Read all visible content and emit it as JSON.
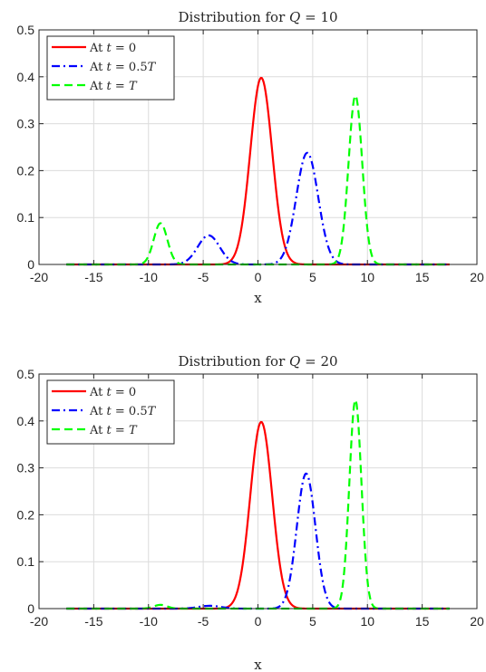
{
  "chart_data": [
    {
      "type": "line",
      "title": "Distribution for Q = 10",
      "title_parts": {
        "prefix": "Distribution for ",
        "var": "Q",
        "rel": " = ",
        "num": "10"
      },
      "xlabel": "x",
      "ylabel": "",
      "xlim": [
        -20,
        20
      ],
      "ylim": [
        0,
        0.5
      ],
      "xticks": [
        -20,
        -15,
        -10,
        -5,
        0,
        5,
        10,
        15,
        20
      ],
      "yticks": [
        0,
        0.1,
        0.2,
        0.3,
        0.4,
        0.5
      ],
      "xtick_labels": [
        "-20",
        "-15",
        "-10",
        "-5",
        "0",
        "5",
        "10",
        "15",
        "20"
      ],
      "ytick_labels": [
        "0",
        "0.1",
        "0.2",
        "0.3",
        "0.4",
        "0.5"
      ],
      "grid": true,
      "legend": "top-left",
      "x_range": [
        -17.5,
        17.5
      ],
      "series": [
        {
          "name": "At t = 0",
          "name_parts": {
            "prefix": "At ",
            "var": "t",
            "rel": " = ",
            "rhs": "0"
          },
          "color": "#ff0000",
          "dash": "solid",
          "components": [
            {
              "amp": 0.398,
              "mu": 0.3,
              "sigma": 1.0
            }
          ]
        },
        {
          "name": "At t = 0.5T",
          "name_parts": {
            "prefix": "At ",
            "var": "t",
            "rel": " = ",
            "rhs": "0.5T"
          },
          "color": "#0000ff",
          "dash": "dashdot",
          "components": [
            {
              "amp": 0.238,
              "mu": 4.5,
              "sigma": 1.0
            },
            {
              "amp": 0.062,
              "mu": -4.5,
              "sigma": 1.0
            }
          ]
        },
        {
          "name": "At t = T",
          "name_parts": {
            "prefix": "At ",
            "var": "t",
            "rel": " = ",
            "rhs": "T"
          },
          "color": "#00ff00",
          "dash": "dashed",
          "components": [
            {
              "amp": 0.36,
              "mu": 8.9,
              "sigma": 0.62
            },
            {
              "amp": 0.088,
              "mu": -8.9,
              "sigma": 0.62
            }
          ]
        }
      ]
    },
    {
      "type": "line",
      "title": "Distribution for Q = 20",
      "title_parts": {
        "prefix": "Distribution for ",
        "var": "Q",
        "rel": " = ",
        "num": "20"
      },
      "xlabel": "x",
      "ylabel": "",
      "xlim": [
        -20,
        20
      ],
      "ylim": [
        0,
        0.5
      ],
      "xticks": [
        -20,
        -15,
        -10,
        -5,
        0,
        5,
        10,
        15,
        20
      ],
      "yticks": [
        0,
        0.1,
        0.2,
        0.3,
        0.4,
        0.5
      ],
      "xtick_labels": [
        "-20",
        "-15",
        "-10",
        "-5",
        "0",
        "5",
        "10",
        "15",
        "20"
      ],
      "ytick_labels": [
        "0",
        "0.1",
        "0.2",
        "0.3",
        "0.4",
        "0.5"
      ],
      "grid": true,
      "legend": "top-left",
      "x_range": [
        -17.5,
        17.5
      ],
      "series": [
        {
          "name": "At t = 0",
          "name_parts": {
            "prefix": "At ",
            "var": "t",
            "rel": " = ",
            "rhs": "0"
          },
          "color": "#ff0000",
          "dash": "solid",
          "components": [
            {
              "amp": 0.398,
              "mu": 0.3,
              "sigma": 1.0
            }
          ]
        },
        {
          "name": "At t = 0.5T",
          "name_parts": {
            "prefix": "At ",
            "var": "t",
            "rel": " = ",
            "rhs": "0.5T"
          },
          "color": "#0000ff",
          "dash": "dashdot",
          "components": [
            {
              "amp": 0.288,
              "mu": 4.4,
              "sigma": 0.85
            },
            {
              "amp": 0.006,
              "mu": -4.4,
              "sigma": 1.0
            }
          ]
        },
        {
          "name": "At t = T",
          "name_parts": {
            "prefix": "At ",
            "var": "t",
            "rel": " = ",
            "rhs": "T"
          },
          "color": "#00ff00",
          "dash": "dashed",
          "components": [
            {
              "amp": 0.445,
              "mu": 8.9,
              "sigma": 0.55
            },
            {
              "amp": 0.008,
              "mu": -8.9,
              "sigma": 0.6
            }
          ]
        }
      ]
    }
  ]
}
